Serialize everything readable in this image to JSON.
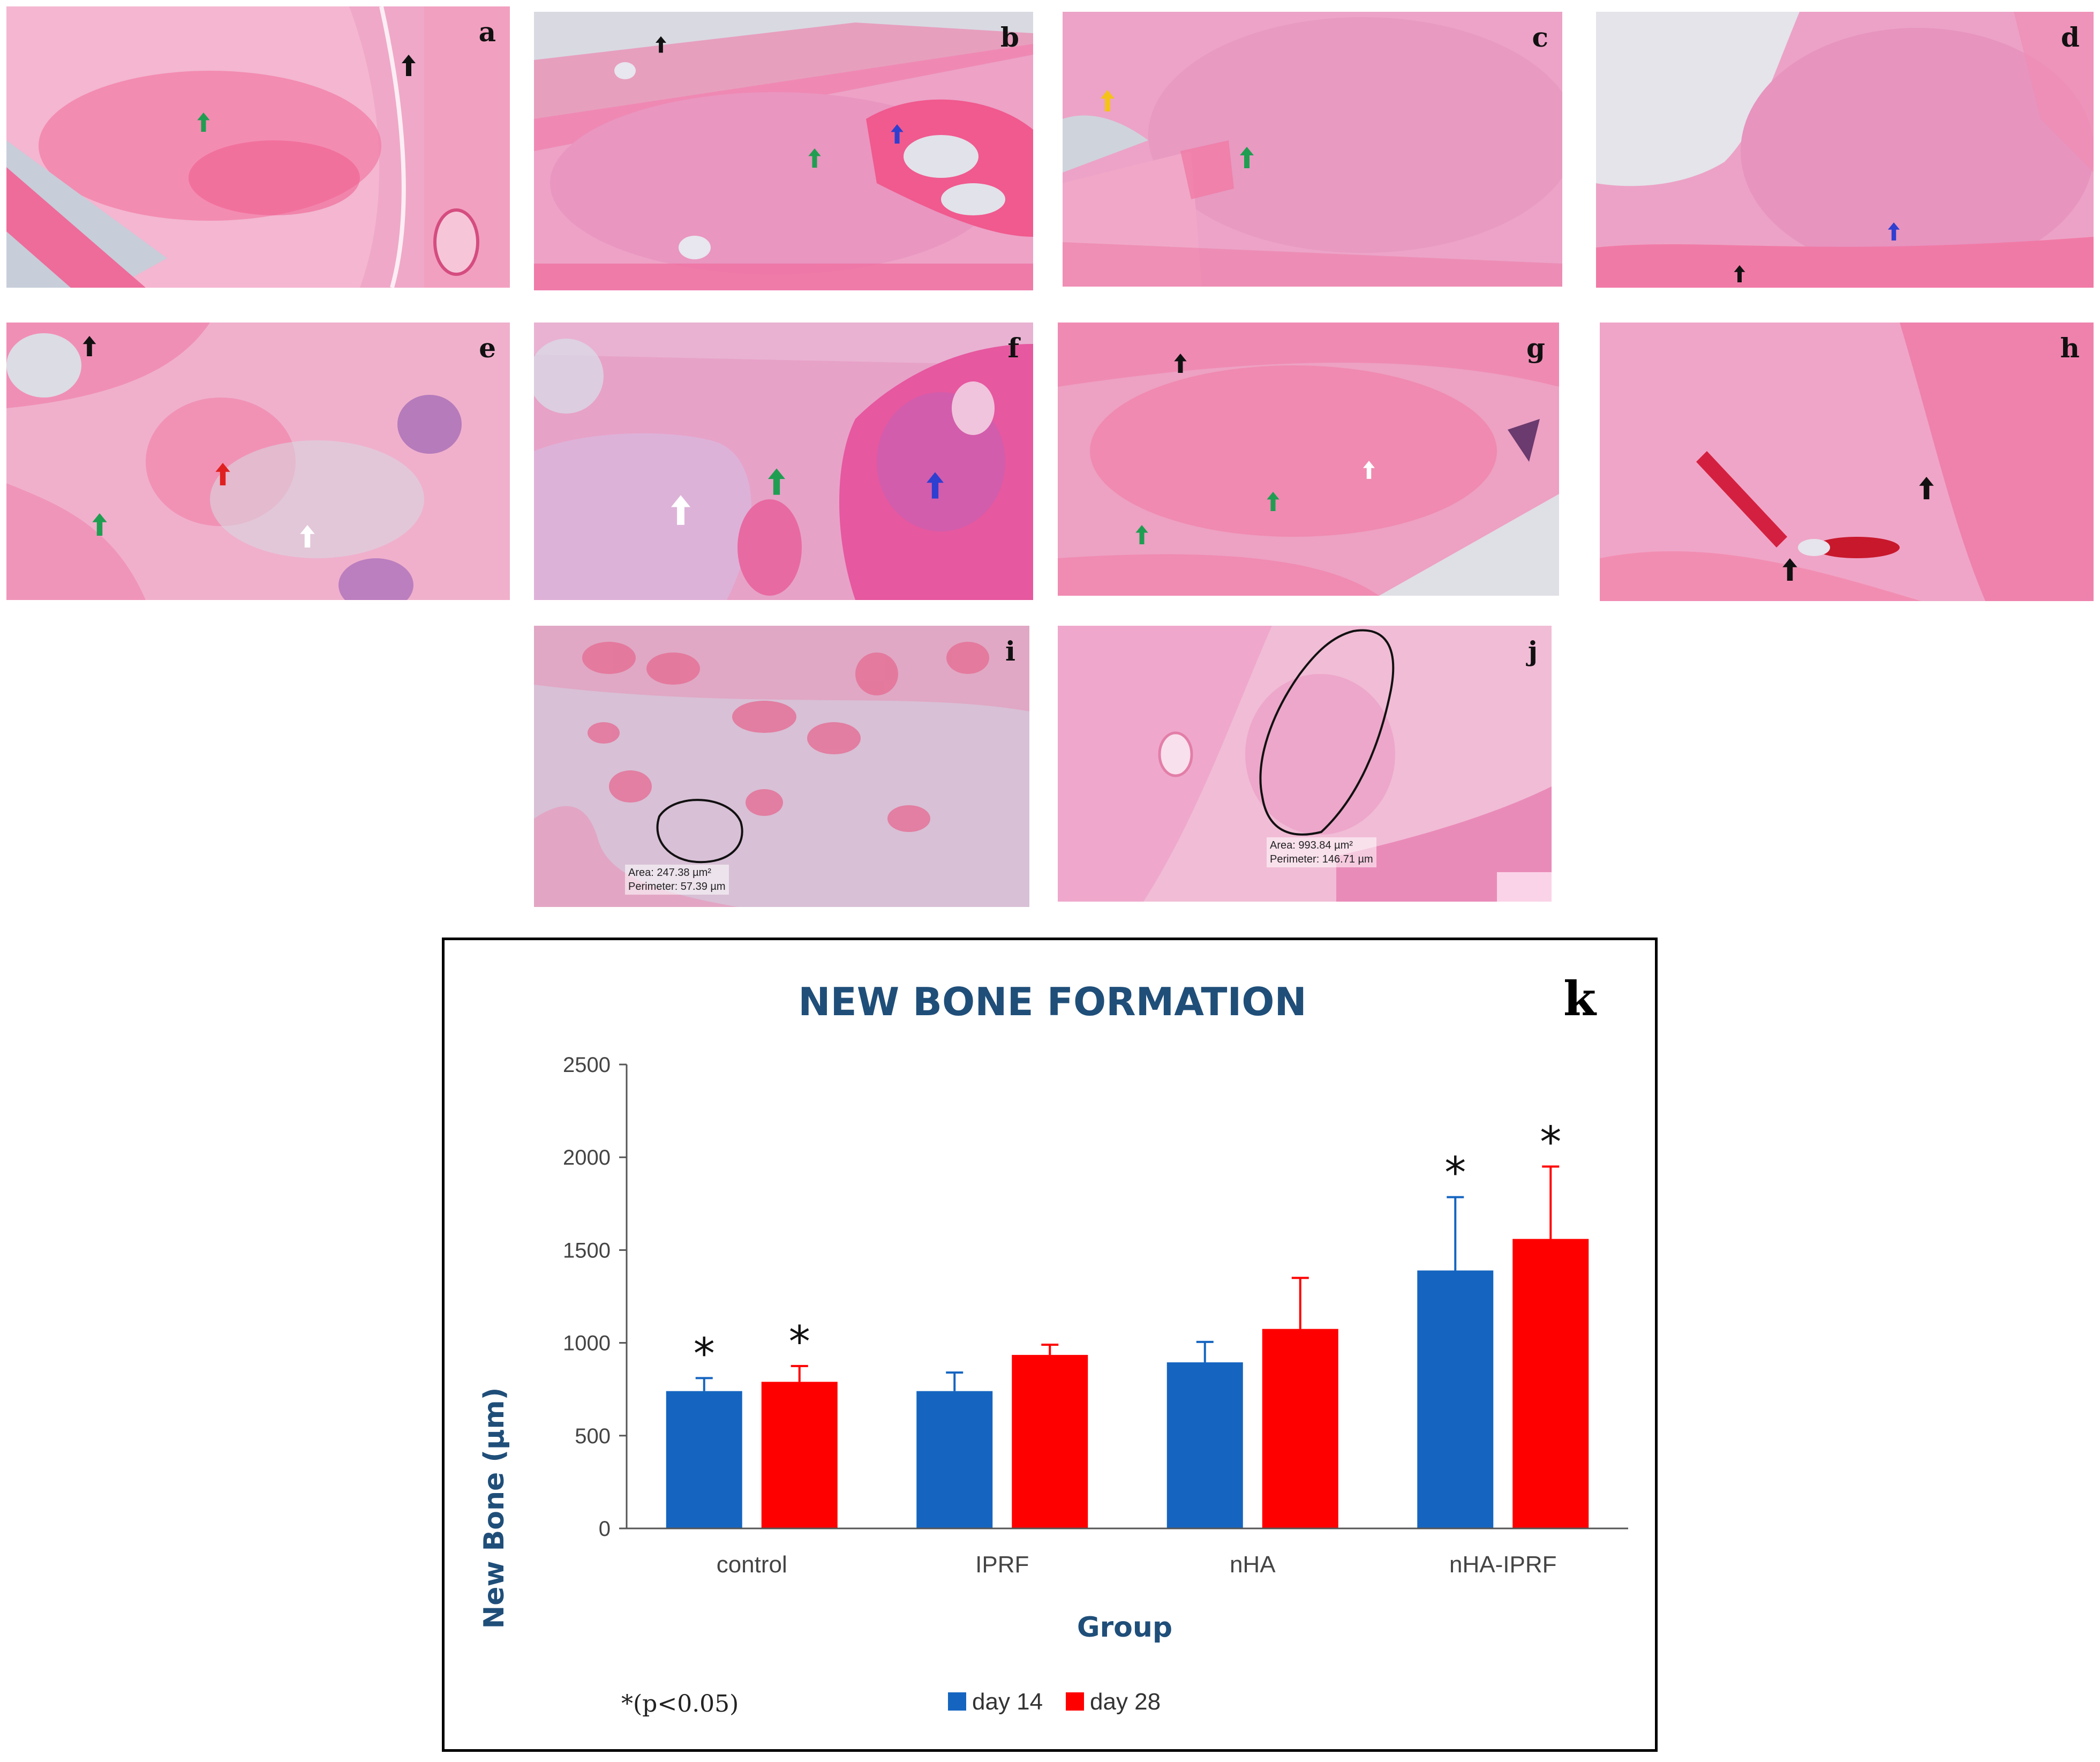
{
  "panels": [
    {
      "letter": "a"
    },
    {
      "letter": "b"
    },
    {
      "letter": "c"
    },
    {
      "letter": "d"
    },
    {
      "letter": "e"
    },
    {
      "letter": "f"
    },
    {
      "letter": "g"
    },
    {
      "letter": "h"
    },
    {
      "letter": "i",
      "area_text": "Area: 247.38 µm²",
      "perimeter_text": "Perimeter: 57.39 µm"
    },
    {
      "letter": "j",
      "area_text": "Area: 993.84 µm²",
      "perimeter_text": "Perimeter: 146.71 µm"
    }
  ],
  "arrow_colors": {
    "black": "#111111",
    "green": "#1f9e52",
    "blue": "#2f3fd0",
    "white": "#ffffff",
    "red": "#e02020",
    "yellow": "#f4c21a"
  },
  "chart_data": {
    "type": "bar",
    "panel_letter": "k",
    "title": "NEW BONE FORMATION",
    "xlabel": "Group",
    "ylabel": "New Bone (µm)",
    "categories": [
      "control",
      "IPRF",
      "nHA",
      "nHA-IPRF"
    ],
    "ylim": [
      0,
      2500
    ],
    "yticks": [
      0,
      500,
      1000,
      1500,
      2000,
      2500
    ],
    "grid": false,
    "legend_position": "bottom",
    "series": [
      {
        "name": "day 14",
        "color": "#1565c0",
        "values": [
          740,
          740,
          895,
          1390
        ],
        "errors": [
          70,
          100,
          110,
          395
        ],
        "significant": [
          true,
          false,
          false,
          true
        ]
      },
      {
        "name": "day 28",
        "color": "#ff0000",
        "values": [
          790,
          935,
          1075,
          1560
        ],
        "errors": [
          85,
          55,
          275,
          390
        ],
        "significant": [
          true,
          false,
          false,
          true
        ]
      }
    ],
    "significance_marker": "*",
    "footnote": "*(p<0.05)"
  }
}
